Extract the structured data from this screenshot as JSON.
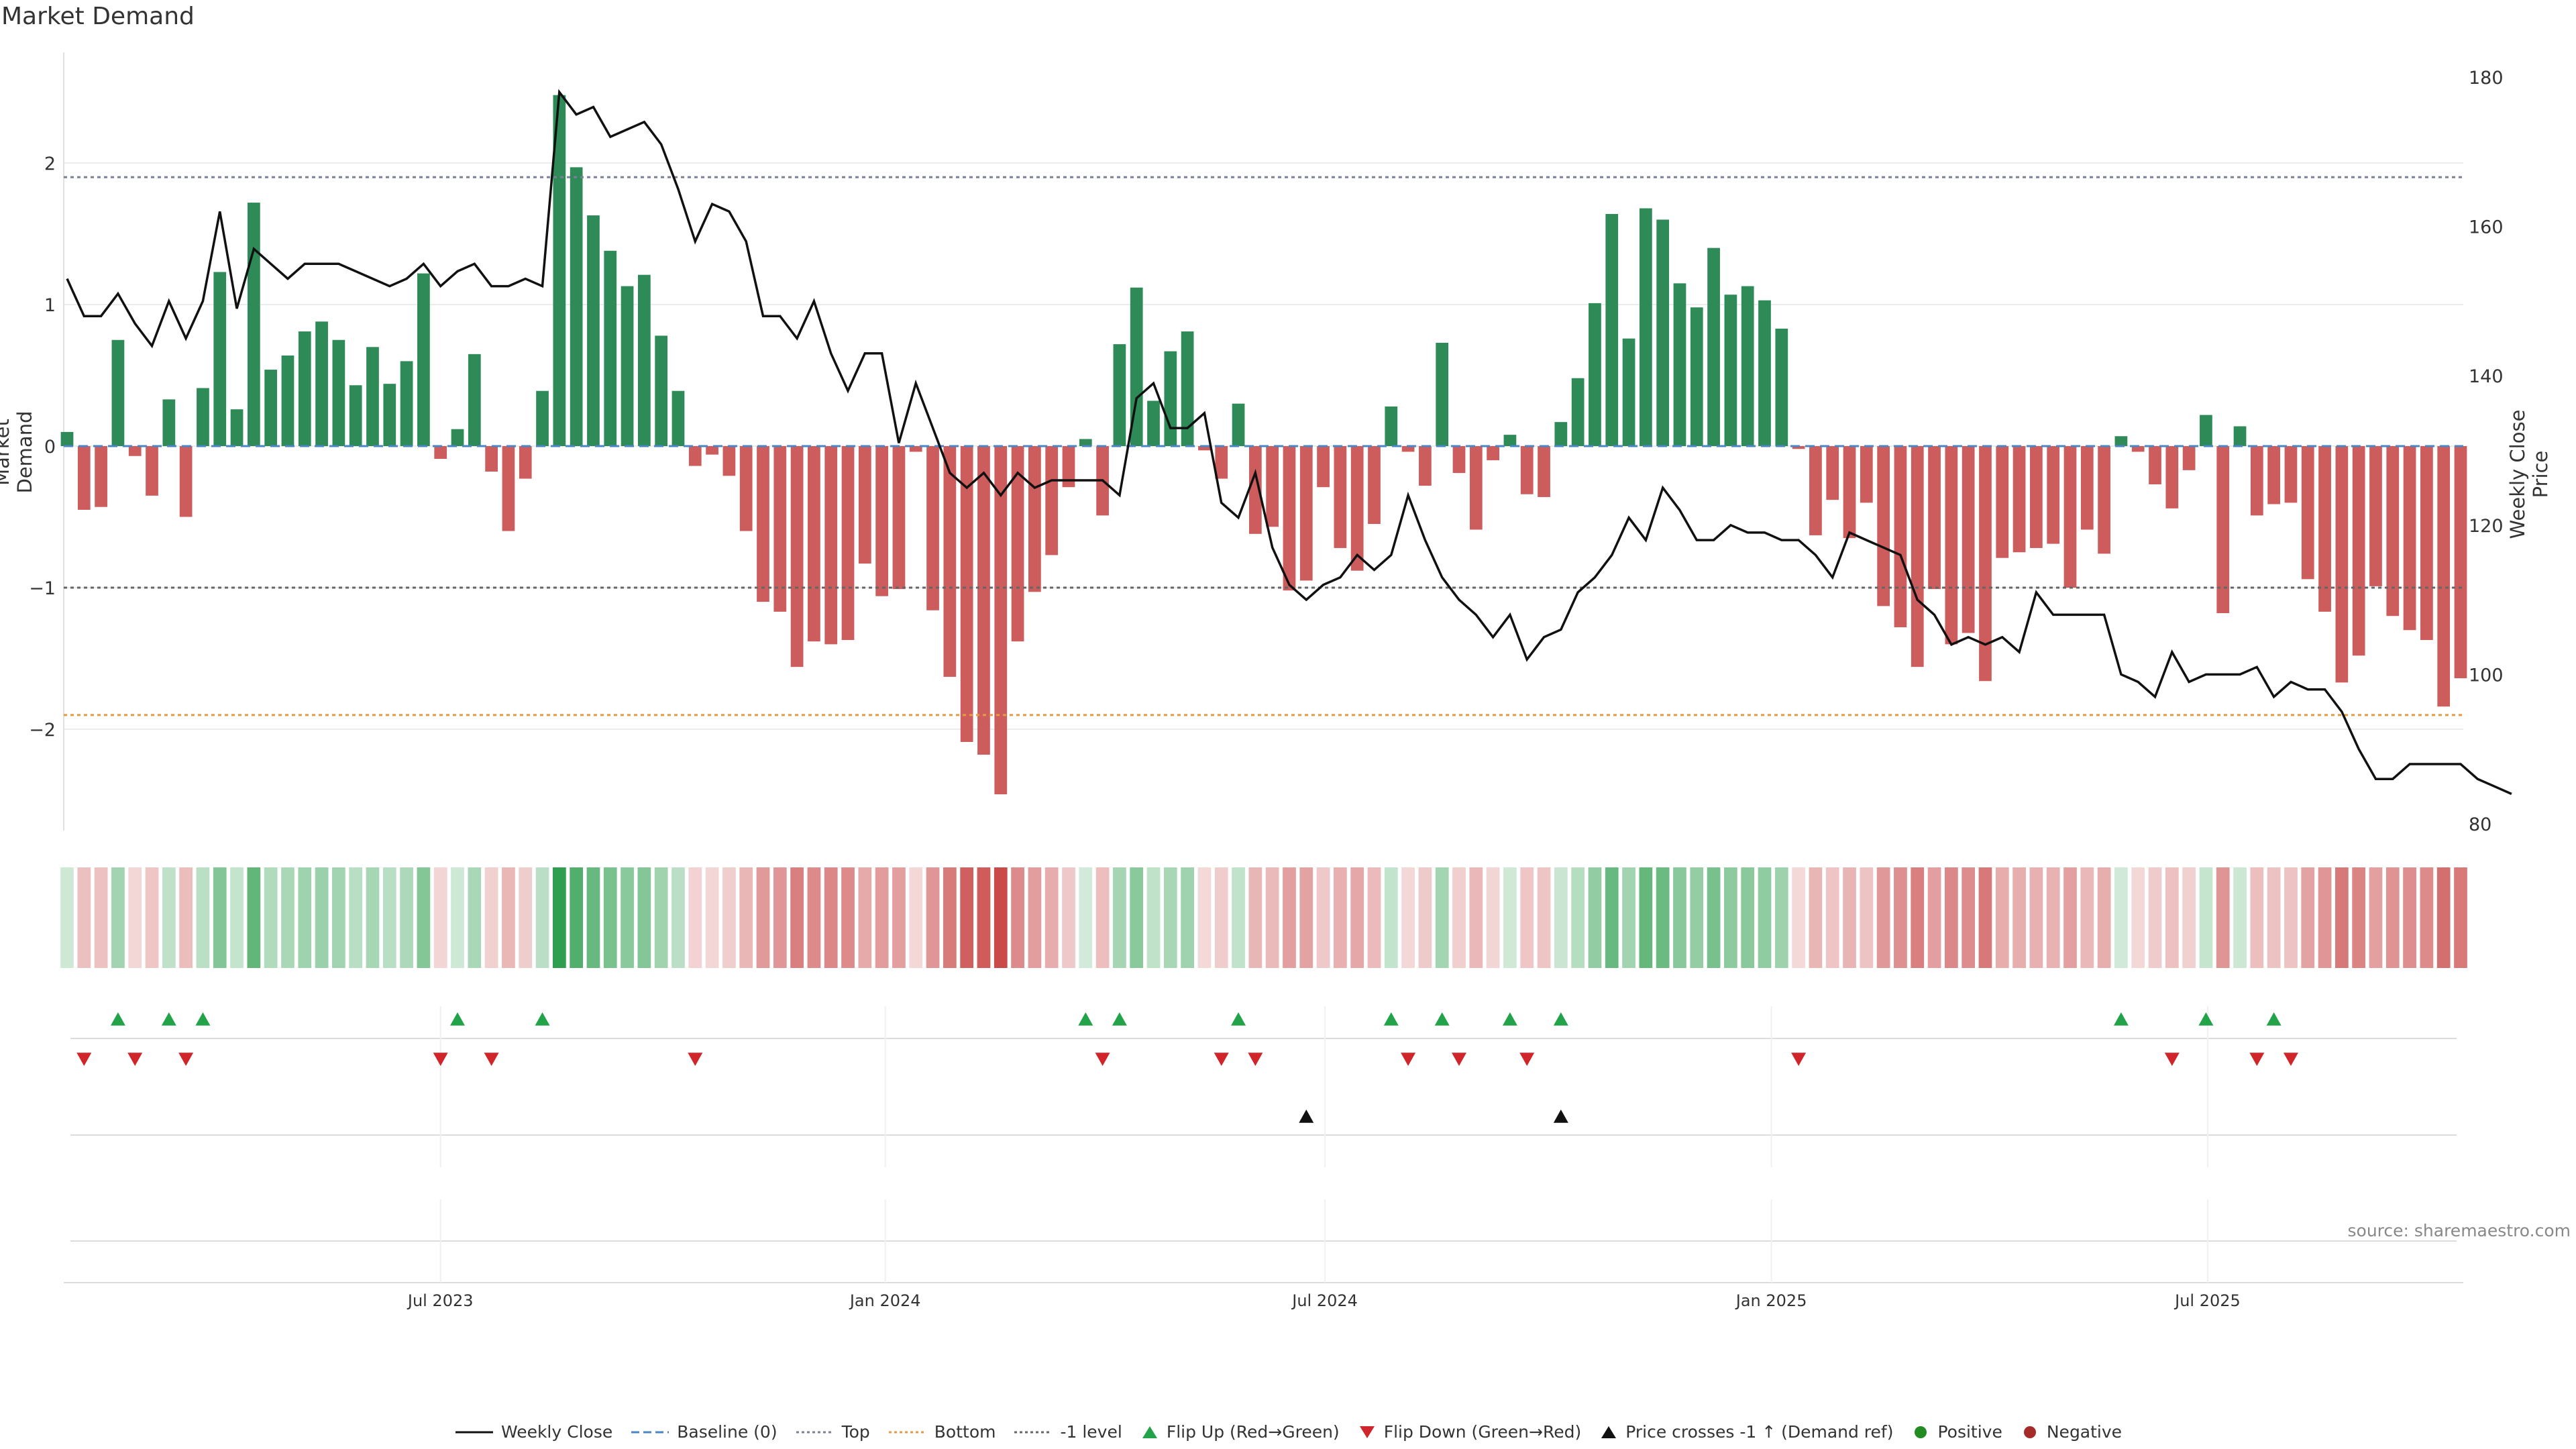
{
  "title": "Market Demand",
  "source_text": "source: sharemaestro.com",
  "colors": {
    "positive": "#2e8b57",
    "negative": "#cd5c5c",
    "price": "#111111",
    "top": "#7a7f9a",
    "bottom": "#e59a45",
    "minus_one": "#666666",
    "baseline": "#4a86c5",
    "flip_up": "#22a34a",
    "flip_down": "#d0262b",
    "cross": "#111111",
    "dot_pos": "#228b22",
    "dot_neg": "#a52a2a"
  },
  "chart_data": {
    "type": "bar",
    "title": "Market Demand",
    "ylabel": "Market Demand",
    "ylabel_right": "Weekly Close Price",
    "ylim": [
      -2.7,
      2.6
    ],
    "ylim_right": [
      80,
      181
    ],
    "yticks": [
      -2,
      -1,
      0,
      1,
      2
    ],
    "yticks_right": [
      80,
      100,
      120,
      140,
      160,
      180
    ],
    "top_level": 1.9,
    "bottom_level": -1.9,
    "minus_one_level": -1.0,
    "x_tick_labels": [
      "Jul 2023",
      "Jan 2024",
      "Jul 2024",
      "Jan 2025",
      "Jul 2025"
    ],
    "x_tick_index": [
      22,
      48.2,
      74.1,
      100.4,
      126.1
    ],
    "demand": [
      0.1,
      -0.45,
      -0.43,
      0.75,
      -0.07,
      -0.35,
      0.33,
      -0.5,
      0.41,
      1.23,
      0.26,
      1.72,
      0.54,
      0.64,
      0.81,
      0.88,
      0.75,
      0.43,
      0.7,
      0.44,
      0.6,
      1.22,
      -0.09,
      0.12,
      0.65,
      -0.18,
      -0.6,
      -0.23,
      0.39,
      2.48,
      1.97,
      1.63,
      1.38,
      1.13,
      1.21,
      0.78,
      0.39,
      -0.14,
      -0.06,
      -0.21,
      -0.6,
      -1.1,
      -1.17,
      -1.56,
      -1.38,
      -1.4,
      -1.37,
      -0.83,
      -1.06,
      -1.01,
      -0.04,
      -1.16,
      -1.63,
      -2.09,
      -2.18,
      -2.46,
      -1.38,
      -1.03,
      -0.77,
      -0.29,
      0.05,
      -0.49,
      0.72,
      1.12,
      0.32,
      0.67,
      0.81,
      -0.03,
      -0.23,
      0.3,
      -0.62,
      -0.57,
      -1.02,
      -0.95,
      -0.29,
      -0.72,
      -0.88,
      -0.55,
      0.28,
      -0.04,
      -0.28,
      0.73,
      -0.19,
      -0.59,
      -0.1,
      0.08,
      -0.34,
      -0.36,
      0.17,
      0.48,
      1.01,
      1.64,
      0.76,
      1.68,
      1.6,
      1.15,
      0.98,
      1.4,
      1.07,
      1.13,
      1.03,
      0.83,
      -0.02,
      -0.63,
      -0.38,
      -0.65,
      -0.4,
      -1.13,
      -1.28,
      -1.56,
      -1.01,
      -1.4,
      -1.32,
      -1.66,
      -0.79,
      -0.75,
      -0.72,
      -0.69,
      -1.0,
      -0.59,
      -0.76,
      0.07,
      -0.04,
      -0.27,
      -0.44,
      -0.17,
      0.22,
      -1.18,
      0.14,
      -0.49,
      -0.41,
      -0.4,
      -0.94,
      -1.17,
      -1.67,
      -1.48,
      -0.99,
      -1.2,
      -1.3,
      -1.37,
      -1.84,
      -1.64
    ],
    "price": [
      153,
      148,
      148,
      151,
      147,
      144,
      150,
      145,
      150,
      162,
      149,
      157,
      155,
      153,
      155,
      155,
      155,
      154,
      153,
      152,
      153,
      155,
      152,
      154,
      155,
      152,
      152,
      153,
      152,
      178,
      175,
      176,
      172,
      173,
      174,
      171,
      165,
      158,
      163,
      162,
      158,
      148,
      148,
      145,
      150,
      143,
      138,
      143,
      143,
      131,
      139,
      133,
      127,
      125,
      127,
      124,
      127,
      125,
      126,
      126,
      126,
      126,
      124,
      137,
      139,
      133,
      133,
      135,
      123,
      121,
      127,
      117,
      112,
      110,
      112,
      113,
      116,
      114,
      116,
      124,
      118,
      113,
      110,
      108,
      105,
      108,
      102,
      105,
      106,
      111,
      113,
      116,
      121,
      118,
      125,
      122,
      118,
      118,
      120,
      119,
      119,
      118,
      118,
      116,
      113,
      119,
      118,
      117,
      116,
      110,
      108,
      104,
      105,
      104,
      105,
      103,
      111,
      108,
      108,
      108,
      108,
      100,
      99,
      97,
      103,
      99,
      100,
      100,
      100,
      101,
      97,
      99,
      98,
      98,
      95,
      90,
      86,
      86,
      88,
      88,
      88,
      88,
      86,
      85,
      84
    ],
    "flip_up_index": [
      3,
      6,
      8,
      23,
      28,
      60,
      62,
      69,
      78,
      81,
      85,
      88,
      121,
      126,
      130
    ],
    "flip_down_index": [
      1,
      4,
      7,
      22,
      25,
      37,
      61,
      68,
      70,
      79,
      82,
      86,
      102,
      124,
      129,
      131
    ],
    "price_cross_index": [
      73,
      88
    ]
  },
  "legend": [
    {
      "label": "Weekly Close",
      "icon": "line-solid"
    },
    {
      "label": "Baseline (0)",
      "icon": "line-dashed-blue"
    },
    {
      "label": "Top",
      "icon": "line-dotted-grey"
    },
    {
      "label": "Bottom",
      "icon": "line-dotted-orange"
    },
    {
      "label": "-1 level",
      "icon": "line-dotted-dark"
    },
    {
      "label": "Flip Up (Red→Green)",
      "icon": "triangle-up-green"
    },
    {
      "label": "Flip Down (Green→Red)",
      "icon": "triangle-down-red"
    },
    {
      "label": "Price crosses -1 ↑ (Demand ref)",
      "icon": "triangle-up-black"
    },
    {
      "label": "Positive",
      "icon": "dot-green"
    },
    {
      "label": "Negative",
      "icon": "dot-red"
    }
  ]
}
